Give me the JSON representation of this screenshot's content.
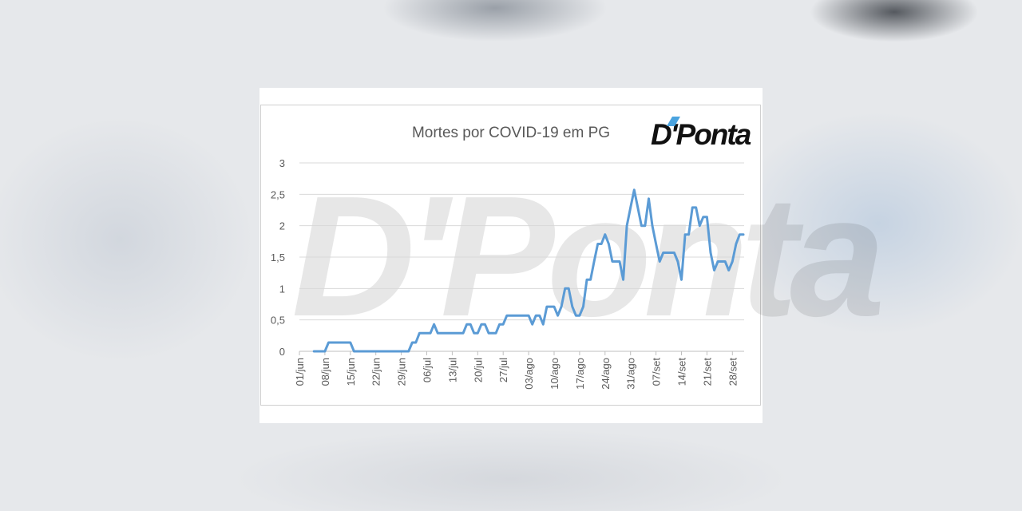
{
  "chart_data": {
    "type": "line",
    "title": "Mortes por COVID-19 em PG",
    "xlabel": "",
    "ylabel": "",
    "ylim": [
      0,
      3
    ],
    "yticks": [
      "0",
      "0,5",
      "1",
      "1,5",
      "2",
      "2,5",
      "3"
    ],
    "xticks": [
      "01/jun",
      "08/jun",
      "15/jun",
      "22/jun",
      "29/jun",
      "06/jul",
      "13/jul",
      "20/jul",
      "27/jul",
      "03/ago",
      "10/ago",
      "17/ago",
      "24/ago",
      "31/ago",
      "07/set",
      "14/set",
      "21/set",
      "28/set"
    ],
    "grid": true,
    "series": [
      {
        "color": "#5b9bd5",
        "points": [
          [
            "05/jun",
            0
          ],
          [
            "08/jun",
            0
          ],
          [
            "09/jun",
            0.14
          ],
          [
            "15/jun",
            0.14
          ],
          [
            "16/jun",
            0
          ],
          [
            "01/jul",
            0
          ],
          [
            "02/jul",
            0.14
          ],
          [
            "03/jul",
            0.14
          ],
          [
            "04/jul",
            0.29
          ],
          [
            "07/jul",
            0.29
          ],
          [
            "08/jul",
            0.43
          ],
          [
            "09/jul",
            0.29
          ],
          [
            "16/jul",
            0.29
          ],
          [
            "17/jul",
            0.43
          ],
          [
            "18/jul",
            0.43
          ],
          [
            "19/jul",
            0.29
          ],
          [
            "20/jul",
            0.29
          ],
          [
            "21/jul",
            0.43
          ],
          [
            "22/jul",
            0.43
          ],
          [
            "23/jul",
            0.29
          ],
          [
            "25/jul",
            0.29
          ],
          [
            "26/jul",
            0.43
          ],
          [
            "27/jul",
            0.43
          ],
          [
            "28/jul",
            0.57
          ],
          [
            "03/ago",
            0.57
          ],
          [
            "04/ago",
            0.43
          ],
          [
            "05/ago",
            0.57
          ],
          [
            "06/ago",
            0.57
          ],
          [
            "07/ago",
            0.43
          ],
          [
            "08/ago",
            0.71
          ],
          [
            "10/ago",
            0.71
          ],
          [
            "11/ago",
            0.57
          ],
          [
            "12/ago",
            0.71
          ],
          [
            "13/ago",
            1.0
          ],
          [
            "14/ago",
            1.0
          ],
          [
            "15/ago",
            0.71
          ],
          [
            "16/ago",
            0.57
          ],
          [
            "17/ago",
            0.57
          ],
          [
            "18/ago",
            0.71
          ],
          [
            "19/ago",
            1.14
          ],
          [
            "20/ago",
            1.14
          ],
          [
            "21/ago",
            1.43
          ],
          [
            "22/ago",
            1.71
          ],
          [
            "23/ago",
            1.71
          ],
          [
            "24/ago",
            1.86
          ],
          [
            "25/ago",
            1.71
          ],
          [
            "26/ago",
            1.43
          ],
          [
            "27/ago",
            1.43
          ],
          [
            "28/ago",
            1.43
          ],
          [
            "29/ago",
            1.14
          ],
          [
            "30/ago",
            2.0
          ],
          [
            "31/ago",
            2.29
          ],
          [
            "01/set",
            2.57
          ],
          [
            "02/set",
            2.29
          ],
          [
            "03/set",
            2.0
          ],
          [
            "04/set",
            2.0
          ],
          [
            "05/set",
            2.43
          ],
          [
            "06/set",
            2.0
          ],
          [
            "07/set",
            1.71
          ],
          [
            "08/set",
            1.43
          ],
          [
            "09/set",
            1.57
          ],
          [
            "12/set",
            1.57
          ],
          [
            "13/set",
            1.43
          ],
          [
            "14/set",
            1.14
          ],
          [
            "15/set",
            1.86
          ],
          [
            "16/set",
            1.86
          ],
          [
            "17/set",
            2.29
          ],
          [
            "18/set",
            2.29
          ],
          [
            "19/set",
            2.0
          ],
          [
            "20/set",
            2.14
          ],
          [
            "21/set",
            2.14
          ],
          [
            "22/set",
            1.57
          ],
          [
            "23/set",
            1.29
          ],
          [
            "24/set",
            1.43
          ],
          [
            "26/set",
            1.43
          ],
          [
            "27/set",
            1.29
          ],
          [
            "28/set",
            1.43
          ],
          [
            "29/set",
            1.71
          ],
          [
            "30/set",
            1.86
          ],
          [
            "01/out",
            1.86
          ]
        ]
      }
    ]
  },
  "logo": {
    "text": "D'Ponta"
  },
  "watermark": {
    "text": "D'Ponta"
  }
}
